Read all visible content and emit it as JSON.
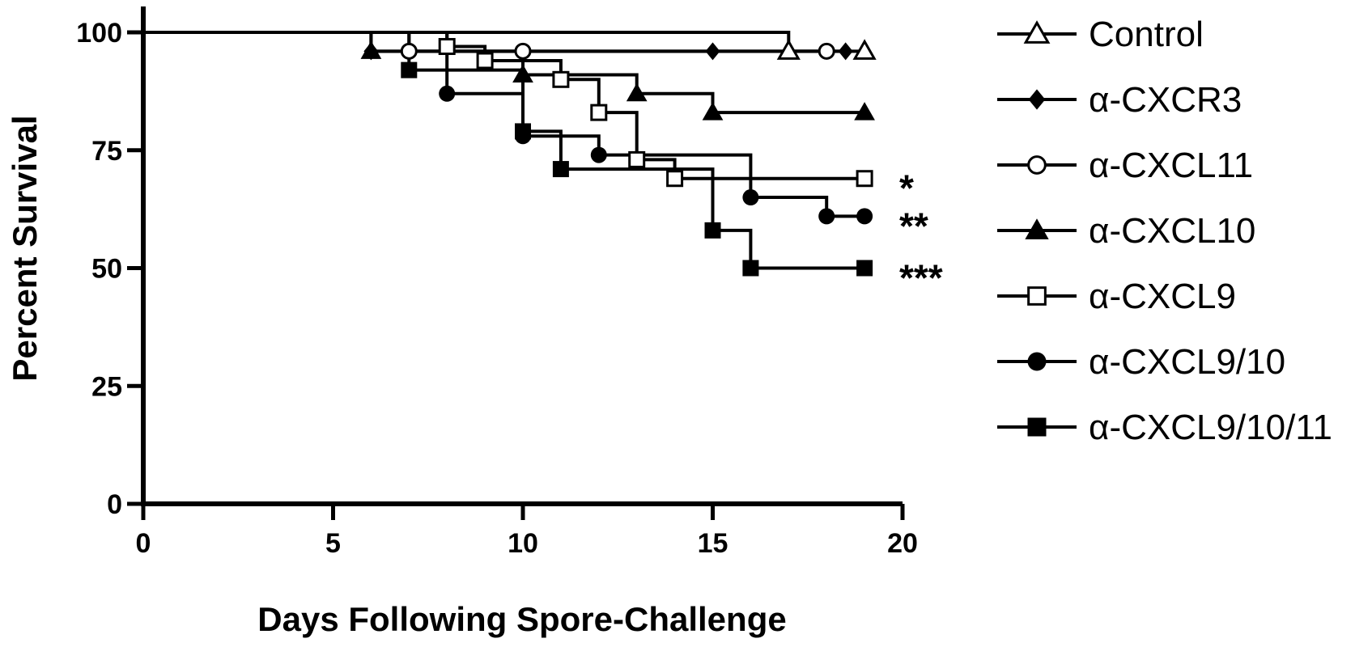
{
  "chart_data": {
    "type": "line",
    "title": "",
    "xlabel": "Days Following Spore-Challenge",
    "ylabel": "Percent Survival",
    "xlim": [
      0,
      20
    ],
    "ylim": [
      0,
      100
    ],
    "xticks": [
      0,
      5,
      10,
      15,
      20
    ],
    "yticks": [
      0,
      25,
      50,
      75,
      100
    ],
    "grid": false,
    "legend_position": "right",
    "step": true,
    "series": [
      {
        "name": "Control",
        "marker": "open-triangle",
        "x": [
          0,
          17,
          19
        ],
        "y": [
          100,
          96,
          96
        ]
      },
      {
        "name": "α-CXCR3",
        "marker": "filled-diamond",
        "x": [
          0,
          6,
          15,
          18.5
        ],
        "y": [
          100,
          96,
          96,
          96
        ]
      },
      {
        "name": "α-CXCL11",
        "marker": "open-circle",
        "x": [
          0,
          7,
          10,
          18
        ],
        "y": [
          100,
          96,
          96,
          96
        ]
      },
      {
        "name": "α-CXCL10",
        "marker": "filled-triangle",
        "x": [
          0,
          6,
          10,
          13,
          15,
          19
        ],
        "y": [
          100,
          96,
          91,
          87,
          83,
          83
        ]
      },
      {
        "name": "α-CXCL9",
        "marker": "open-square",
        "x": [
          0,
          8,
          9,
          11,
          12,
          13,
          14,
          19
        ],
        "y": [
          100,
          97,
          94,
          90,
          83,
          73,
          69,
          69
        ]
      },
      {
        "name": "α-CXCL9/10",
        "marker": "filled-circle",
        "x": [
          0,
          8,
          10,
          12,
          16,
          18,
          19
        ],
        "y": [
          100,
          87,
          78,
          74,
          65,
          61,
          61
        ]
      },
      {
        "name": "α-CXCL9/10/11",
        "marker": "filled-square",
        "x": [
          0,
          7,
          10,
          11,
          15,
          16,
          19
        ],
        "y": [
          100,
          92,
          79,
          71,
          58,
          50,
          50
        ]
      }
    ],
    "annotations": [
      {
        "text": "*",
        "series": "α-CXCL9"
      },
      {
        "text": "**",
        "series": "α-CXCL9/10"
      },
      {
        "text": "***",
        "series": "α-CXCL9/10/11"
      }
    ]
  }
}
